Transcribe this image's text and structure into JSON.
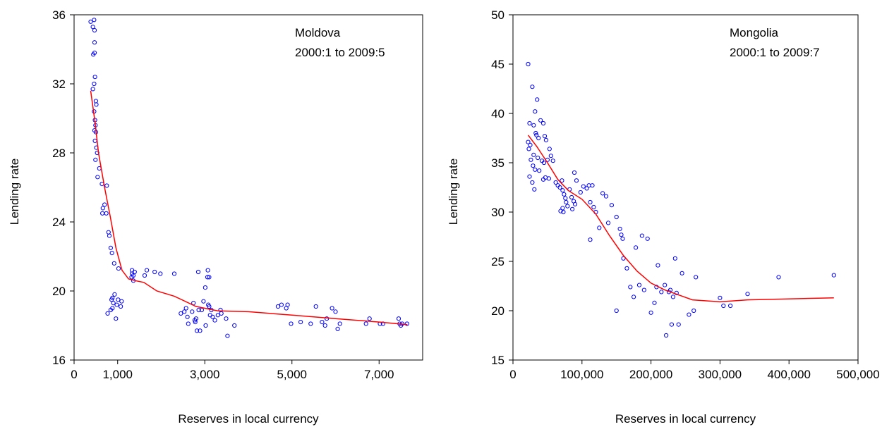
{
  "chart_data": [
    {
      "type": "scatter",
      "title": "",
      "annotation_lines": [
        "Moldova",
        "2000:1 to 2009:5"
      ],
      "xlabel": "Reserves in local currency",
      "ylabel": "Lending rate",
      "xlim": [
        0,
        8000
      ],
      "ylim": [
        16,
        36
      ],
      "xticks": [
        0,
        1000,
        3000,
        5000,
        7000
      ],
      "xtick_labels": [
        "0",
        "1,000",
        "3,000",
        "5,000",
        "7,000"
      ],
      "yticks": [
        16,
        20,
        24,
        28,
        32,
        36
      ],
      "ytick_labels": [
        "16",
        "20",
        "24",
        "28",
        "32",
        "36"
      ],
      "grid": false,
      "legend": "none",
      "series": [
        {
          "kind": "points",
          "color": "#0000ff",
          "points": [
            [
              380,
              35.6
            ],
            [
              430,
              35.3
            ],
            [
              470,
              35.1
            ],
            [
              460,
              35.7
            ],
            [
              440,
              33.7
            ],
            [
              470,
              33.8
            ],
            [
              470,
              34.4
            ],
            [
              480,
              32.4
            ],
            [
              460,
              32.0
            ],
            [
              430,
              31.7
            ],
            [
              500,
              31.0
            ],
            [
              510,
              30.8
            ],
            [
              460,
              30.4
            ],
            [
              480,
              29.9
            ],
            [
              490,
              29.6
            ],
            [
              470,
              29.3
            ],
            [
              500,
              29.2
            ],
            [
              480,
              28.7
            ],
            [
              510,
              28.3
            ],
            [
              530,
              28.0
            ],
            [
              490,
              27.6
            ],
            [
              580,
              27.1
            ],
            [
              540,
              26.6
            ],
            [
              750,
              26.1
            ],
            [
              640,
              26.2
            ],
            [
              700,
              25.0
            ],
            [
              660,
              24.8
            ],
            [
              650,
              24.5
            ],
            [
              740,
              24.5
            ],
            [
              790,
              23.4
            ],
            [
              810,
              23.2
            ],
            [
              840,
              22.5
            ],
            [
              870,
              22.2
            ],
            [
              920,
              21.6
            ],
            [
              1020,
              21.3
            ],
            [
              1090,
              19.4
            ],
            [
              1010,
              19.5
            ],
            [
              930,
              19.8
            ],
            [
              880,
              19.6
            ],
            [
              860,
              19.5
            ],
            [
              900,
              19.3
            ],
            [
              980,
              19.2
            ],
            [
              880,
              19.0
            ],
            [
              840,
              18.9
            ],
            [
              770,
              18.7
            ],
            [
              960,
              18.4
            ],
            [
              1070,
              19.1
            ],
            [
              1330,
              21.2
            ],
            [
              1390,
              21.1
            ],
            [
              1330,
              21.0
            ],
            [
              1360,
              20.9
            ],
            [
              1320,
              20.8
            ],
            [
              1360,
              20.6
            ],
            [
              1620,
              20.9
            ],
            [
              1670,
              21.2
            ],
            [
              1850,
              21.1
            ],
            [
              1980,
              21.0
            ],
            [
              2300,
              21.0
            ],
            [
              2450,
              18.7
            ],
            [
              2530,
              18.8
            ],
            [
              2570,
              19.0
            ],
            [
              2600,
              18.5
            ],
            [
              2620,
              18.1
            ],
            [
              2710,
              18.8
            ],
            [
              2740,
              19.3
            ],
            [
              2770,
              18.3
            ],
            [
              2780,
              18.2
            ],
            [
              2800,
              18.4
            ],
            [
              2820,
              17.7
            ],
            [
              2860,
              18.9
            ],
            [
              2850,
              21.1
            ],
            [
              2890,
              17.7
            ],
            [
              2970,
              19.4
            ],
            [
              3010,
              20.2
            ],
            [
              3020,
              18.0
            ],
            [
              3060,
              20.8
            ],
            [
              3070,
              21.2
            ],
            [
              3080,
              19.2
            ],
            [
              3100,
              19.1
            ],
            [
              3120,
              18.6
            ],
            [
              3150,
              18.9
            ],
            [
              3180,
              18.5
            ],
            [
              3230,
              18.3
            ],
            [
              3300,
              18.6
            ],
            [
              3360,
              18.9
            ],
            [
              3380,
              18.7
            ],
            [
              3490,
              18.4
            ],
            [
              3520,
              17.4
            ],
            [
              3680,
              18.0
            ],
            [
              3100,
              20.8
            ],
            [
              2930,
              18.9
            ],
            [
              4680,
              19.1
            ],
            [
              4760,
              19.2
            ],
            [
              4870,
              19.0
            ],
            [
              4900,
              19.2
            ],
            [
              4980,
              18.1
            ],
            [
              5200,
              18.2
            ],
            [
              5430,
              18.1
            ],
            [
              5550,
              19.1
            ],
            [
              5690,
              18.2
            ],
            [
              5760,
              18.0
            ],
            [
              5800,
              18.4
            ],
            [
              5920,
              19.0
            ],
            [
              6000,
              18.8
            ],
            [
              6050,
              17.8
            ],
            [
              6100,
              18.1
            ],
            [
              6700,
              18.1
            ],
            [
              6780,
              18.4
            ],
            [
              7020,
              18.1
            ],
            [
              7090,
              18.1
            ],
            [
              7450,
              18.4
            ],
            [
              7470,
              18.1
            ],
            [
              7500,
              18.0
            ],
            [
              7640,
              18.1
            ],
            [
              7530,
              18.1
            ]
          ]
        },
        {
          "kind": "line",
          "color": "#ff0000",
          "points": [
            [
              380,
              31.6
            ],
            [
              480,
              29.8
            ],
            [
              560,
              28.0
            ],
            [
              700,
              26.0
            ],
            [
              830,
              24.3
            ],
            [
              960,
              22.5
            ],
            [
              1100,
              21.2
            ],
            [
              1250,
              20.7
            ],
            [
              1400,
              20.6
            ],
            [
              1600,
              20.5
            ],
            [
              1900,
              20.0
            ],
            [
              2300,
              19.7
            ],
            [
              2800,
              19.1
            ],
            [
              3300,
              18.85
            ],
            [
              4000,
              18.8
            ],
            [
              5000,
              18.6
            ],
            [
              6000,
              18.4
            ],
            [
              7000,
              18.2
            ],
            [
              7650,
              18.05
            ]
          ]
        }
      ]
    },
    {
      "type": "scatter",
      "title": "",
      "annotation_lines": [
        "Mongolia",
        "2000:1 to 2009:7"
      ],
      "xlabel": "Reserves in local currency",
      "ylabel": "Lending rate",
      "xlim": [
        0,
        500000
      ],
      "ylim": [
        15,
        50
      ],
      "xticks": [
        0,
        100000,
        200000,
        300000,
        400000,
        500000
      ],
      "xtick_labels": [
        "0",
        "100,000",
        "200,000",
        "300,000",
        "400,000",
        "500,000"
      ],
      "yticks": [
        15,
        20,
        25,
        30,
        35,
        40,
        45,
        50
      ],
      "ytick_labels": [
        "15",
        "20",
        "25",
        "30",
        "35",
        "40",
        "45",
        "50"
      ],
      "grid": false,
      "legend": "none",
      "series": [
        {
          "kind": "points",
          "color": "#0000ff",
          "points": [
            [
              22000,
              45.0
            ],
            [
              28000,
              42.7
            ],
            [
              32000,
              40.2
            ],
            [
              35000,
              41.4
            ],
            [
              24000,
              39.0
            ],
            [
              30000,
              38.8
            ],
            [
              33000,
              38.0
            ],
            [
              34000,
              37.8
            ],
            [
              37000,
              37.5
            ],
            [
              40000,
              39.3
            ],
            [
              44000,
              39.0
            ],
            [
              46000,
              37.7
            ],
            [
              48000,
              37.3
            ],
            [
              22000,
              37.1
            ],
            [
              25000,
              36.8
            ],
            [
              23000,
              36.4
            ],
            [
              30000,
              35.8
            ],
            [
              36000,
              35.5
            ],
            [
              42000,
              35.2
            ],
            [
              45000,
              35.0
            ],
            [
              50000,
              35.3
            ],
            [
              53000,
              36.4
            ],
            [
              55000,
              35.7
            ],
            [
              58000,
              35.2
            ],
            [
              26000,
              35.3
            ],
            [
              29000,
              34.7
            ],
            [
              32000,
              34.3
            ],
            [
              38000,
              34.2
            ],
            [
              24000,
              33.6
            ],
            [
              28000,
              33.0
            ],
            [
              31000,
              32.3
            ],
            [
              44000,
              33.3
            ],
            [
              47000,
              33.5
            ],
            [
              52000,
              33.4
            ],
            [
              62000,
              33.0
            ],
            [
              65000,
              32.7
            ],
            [
              68000,
              32.5
            ],
            [
              71000,
              33.2
            ],
            [
              72000,
              32.2
            ],
            [
              74000,
              31.8
            ],
            [
              76000,
              31.4
            ],
            [
              77000,
              31.0
            ],
            [
              79000,
              30.6
            ],
            [
              72000,
              30.4
            ],
            [
              69000,
              30.1
            ],
            [
              73000,
              30.0
            ],
            [
              82000,
              32.3
            ],
            [
              85000,
              31.5
            ],
            [
              88000,
              31.1
            ],
            [
              90000,
              30.8
            ],
            [
              86000,
              30.3
            ],
            [
              89000,
              34.0
            ],
            [
              92000,
              33.2
            ],
            [
              98000,
              32.0
            ],
            [
              102000,
              32.6
            ],
            [
              107000,
              32.4
            ],
            [
              110000,
              32.7
            ],
            [
              112000,
              31.0
            ],
            [
              115000,
              32.7
            ],
            [
              117000,
              30.5
            ],
            [
              120000,
              30.0
            ],
            [
              125000,
              28.4
            ],
            [
              112000,
              27.2
            ],
            [
              130000,
              31.9
            ],
            [
              135000,
              31.6
            ],
            [
              138000,
              28.9
            ],
            [
              143000,
              30.7
            ],
            [
              150000,
              29.5
            ],
            [
              155000,
              28.3
            ],
            [
              157000,
              27.7
            ],
            [
              159000,
              27.3
            ],
            [
              160000,
              25.3
            ],
            [
              165000,
              24.3
            ],
            [
              170000,
              22.4
            ],
            [
              175000,
              21.4
            ],
            [
              178000,
              26.4
            ],
            [
              183000,
              22.6
            ],
            [
              187000,
              27.6
            ],
            [
              195000,
              27.3
            ],
            [
              190000,
              22.1
            ],
            [
              200000,
              19.8
            ],
            [
              205000,
              20.8
            ],
            [
              208000,
              22.4
            ],
            [
              210000,
              24.6
            ],
            [
              215000,
              21.9
            ],
            [
              220000,
              22.6
            ],
            [
              222000,
              17.5
            ],
            [
              226000,
              21.9
            ],
            [
              228000,
              22.1
            ],
            [
              230000,
              18.6
            ],
            [
              232000,
              21.4
            ],
            [
              235000,
              25.3
            ],
            [
              237000,
              21.8
            ],
            [
              240000,
              18.6
            ],
            [
              245000,
              23.8
            ],
            [
              255000,
              19.6
            ],
            [
              262000,
              20.0
            ],
            [
              265000,
              23.4
            ],
            [
              150000,
              20.0
            ],
            [
              300000,
              21.3
            ],
            [
              305000,
              20.5
            ],
            [
              315000,
              20.5
            ],
            [
              340000,
              21.7
            ],
            [
              385000,
              23.4
            ],
            [
              465000,
              23.6
            ]
          ]
        },
        {
          "kind": "line",
          "color": "#ff0000",
          "points": [
            [
              22000,
              37.8
            ],
            [
              35000,
              36.6
            ],
            [
              50000,
              35.0
            ],
            [
              65000,
              33.3
            ],
            [
              80000,
              32.2
            ],
            [
              100000,
              31.3
            ],
            [
              120000,
              29.8
            ],
            [
              140000,
              27.6
            ],
            [
              160000,
              25.6
            ],
            [
              180000,
              24.0
            ],
            [
              200000,
              22.8
            ],
            [
              220000,
              22.1
            ],
            [
              240000,
              21.6
            ],
            [
              260000,
              21.1
            ],
            [
              300000,
              20.9
            ],
            [
              340000,
              21.1
            ],
            [
              400000,
              21.2
            ],
            [
              465000,
              21.3
            ]
          ]
        }
      ]
    }
  ]
}
